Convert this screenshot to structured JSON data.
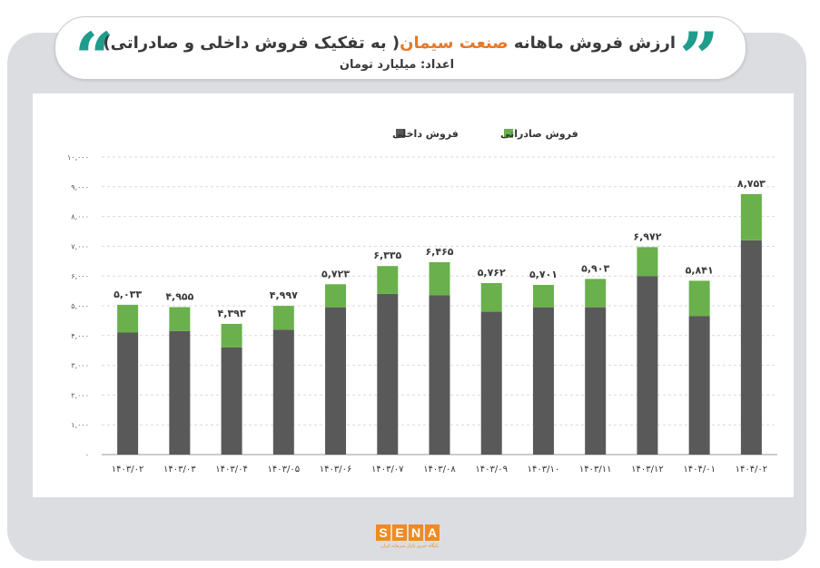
{
  "header": {
    "title_prefix": "ارزش فروش ماهانه",
    "title_highlight": "صنعت سیمان",
    "title_suffix": "( به تفکیک فروش داخلی و صادراتی)",
    "subtitle": "اعداد: میلیارد تومان"
  },
  "logo": {
    "letters": [
      "S",
      "E",
      "N",
      "A"
    ],
    "tagline": "پایگاه خبری بازار سرمایه ایران"
  },
  "colors": {
    "domestic": "#595959",
    "export": "#6ab04c",
    "accent": "#e57a2a",
    "quote": "#1f9c8c",
    "frame": "#dcdde0"
  },
  "chart_data": {
    "type": "bar",
    "stacked": true,
    "title": "",
    "xlabel": "",
    "ylabel": "",
    "ylim": [
      0,
      10000
    ],
    "grid": true,
    "legend_position": "top",
    "y_ticks": [
      0,
      1000,
      2000,
      3000,
      4000,
      5000,
      6000,
      7000,
      8000,
      9000,
      10000
    ],
    "y_tick_labels": [
      "۰",
      "۱,۰۰۰",
      "۲,۰۰۰",
      "۳,۰۰۰",
      "۴,۰۰۰",
      "۵,۰۰۰",
      "۶,۰۰۰",
      "۷,۰۰۰",
      "۸,۰۰۰",
      "۹,۰۰۰",
      "۱۰,۰۰۰"
    ],
    "categories": [
      "۱۴۰۳/۰۲",
      "۱۴۰۳/۰۳",
      "۱۴۰۳/۰۴",
      "۱۴۰۳/۰۵",
      "۱۴۰۳/۰۶",
      "۱۴۰۳/۰۷",
      "۱۴۰۳/۰۸",
      "۱۴۰۳/۰۹",
      "۱۴۰۳/۱۰",
      "۱۴۰۳/۱۱",
      "۱۴۰۳/۱۲",
      "۱۴۰۴/۰۱",
      "۱۴۰۴/۰۲"
    ],
    "series": [
      {
        "name": "فروش داخلی",
        "color": "#595959",
        "values": [
          4100,
          4150,
          3600,
          4200,
          4950,
          5400,
          5350,
          4800,
          4950,
          4950,
          6000,
          4650,
          7200
        ]
      },
      {
        "name": "فروش صادراتی",
        "color": "#6ab04c",
        "values": [
          933,
          805,
          793,
          797,
          773,
          935,
          1115,
          962,
          751,
          953,
          972,
          1191,
          1553
        ]
      }
    ],
    "totals": [
      5033,
      4955,
      4393,
      4997,
      5723,
      6335,
      6465,
      5762,
      5701,
      5903,
      6972,
      5841,
      8753
    ],
    "total_labels": [
      "۵,۰۳۳",
      "۴,۹۵۵",
      "۴,۳۹۳",
      "۴,۹۹۷",
      "۵,۷۲۳",
      "۶,۳۳۵",
      "۶,۴۶۵",
      "۵,۷۶۲",
      "۵,۷۰۱",
      "۵,۹۰۳",
      "۶,۹۷۲",
      "۵,۸۴۱",
      "۸,۷۵۳"
    ]
  }
}
